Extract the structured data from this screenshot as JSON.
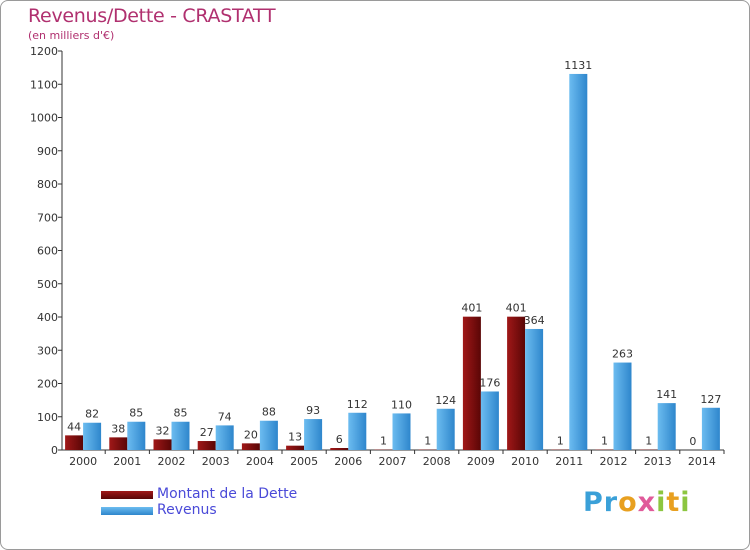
{
  "chart_data": {
    "type": "bar",
    "title": "Revenus/Dette - CRASTATT",
    "subtitle": "(en milliers d'€)",
    "categories": [
      "2000",
      "2001",
      "2002",
      "2003",
      "2004",
      "2005",
      "2006",
      "2007",
      "2008",
      "2009",
      "2010",
      "2011",
      "2012",
      "2013",
      "2014"
    ],
    "series": [
      {
        "name": "Montant de la Dette",
        "color": "#8b1010",
        "values": [
          44,
          38,
          32,
          27,
          20,
          13,
          6,
          1,
          1,
          401,
          401,
          1,
          1,
          1,
          0
        ]
      },
      {
        "name": "Revenus",
        "color": "#4aa3e4",
        "values": [
          82,
          85,
          85,
          74,
          88,
          93,
          112,
          110,
          124,
          176,
          364,
          1131,
          263,
          141,
          127
        ]
      }
    ],
    "ylim": [
      0,
      1200
    ],
    "yticks": [
      0,
      100,
      200,
      300,
      400,
      500,
      600,
      700,
      800,
      900,
      1000,
      1100,
      1200
    ],
    "grid": false,
    "legend_position": "bottom-left"
  },
  "logo": {
    "text": "Proxiti"
  }
}
